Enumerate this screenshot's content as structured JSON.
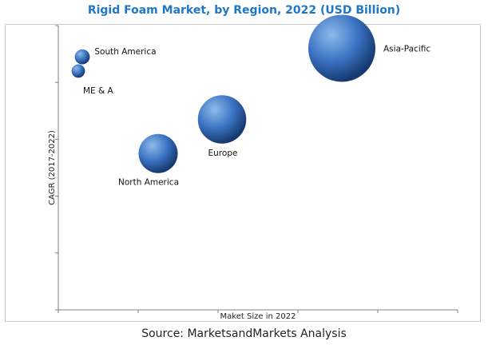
{
  "title": "Rigid Foam Market, by Region, 2022 (USD Billion)",
  "source": "Source: MarketsandMarkets Analysis",
  "colors": {
    "title": "#1f77c8",
    "bubble_light": "#8fb9ea",
    "bubble_mid": "#3c74c4",
    "bubble_dark": "#163a70",
    "axis": "#808080",
    "frame": "#c9c9c9"
  },
  "chart_data": {
    "type": "bubble",
    "title": "Rigid Foam Market, by Region, 2022 (USD Billion)",
    "xlabel": "Maket Size in 2022",
    "ylabel": "CAGR (2017-2022)",
    "xlim": [
      0,
      10
    ],
    "ylim": [
      0,
      10
    ],
    "x_ticks": [
      0,
      2,
      4,
      6,
      8,
      10
    ],
    "y_ticks": [
      0,
      2,
      4,
      6,
      8,
      10
    ],
    "grid": false,
    "legend": "none",
    "points": [
      {
        "label": "Asia-Pacific",
        "x": 7.1,
        "y": 9.2,
        "size": 10
      },
      {
        "label": "Europe",
        "x": 4.1,
        "y": 6.7,
        "size": 5.2
      },
      {
        "label": "North America",
        "x": 2.5,
        "y": 5.5,
        "size": 3.4
      },
      {
        "label": "South America",
        "x": 0.6,
        "y": 8.9,
        "size": 0.5
      },
      {
        "label": "ME & A",
        "x": 0.5,
        "y": 8.4,
        "size": 0.4
      }
    ]
  }
}
